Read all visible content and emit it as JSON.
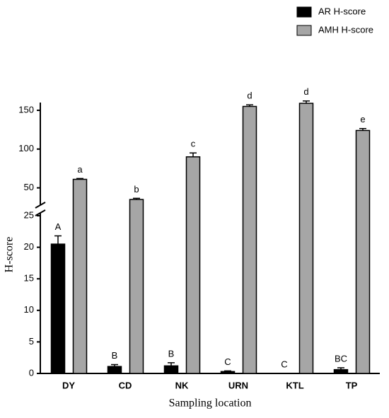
{
  "chart_data": {
    "type": "bar",
    "y_label": "H-score",
    "x_label": "Sampling location",
    "categories": [
      "DY",
      "CD",
      "NK",
      "URN",
      "KTL",
      "TP"
    ],
    "series": [
      {
        "name": "AR H-score",
        "color": "#000000",
        "values": [
          20.5,
          1.1,
          1.2,
          0.3,
          0,
          0.6
        ],
        "errors": [
          1.3,
          0.3,
          0.5,
          0.1,
          0,
          0.3
        ],
        "letters": [
          "A",
          "B",
          "B",
          "C",
          "C",
          "BC"
        ]
      },
      {
        "name": "AMH H-score",
        "color": "#a6a6a6",
        "values": [
          61,
          35,
          90,
          155,
          159,
          124
        ],
        "errors": [
          1,
          1.5,
          5,
          2,
          3,
          2.5
        ],
        "letters": [
          "a",
          "b",
          "c",
          "d",
          "d",
          "e"
        ]
      }
    ],
    "ylim": [
      0,
      25
    ],
    "yticks": [
      0,
      5,
      10,
      15,
      20,
      25
    ],
    "y_upper_lim": [
      25,
      160
    ],
    "y_upper_ticks": [
      50,
      100,
      150
    ]
  }
}
